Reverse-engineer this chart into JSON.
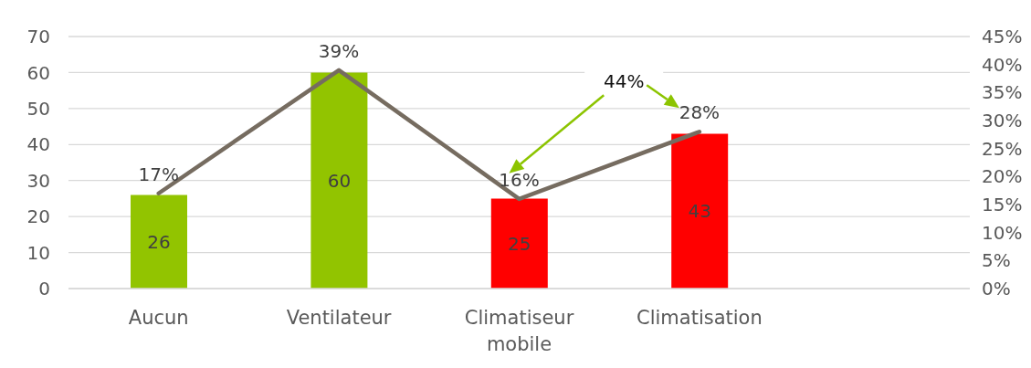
{
  "chart_data": {
    "type": "bar",
    "categories": [
      "Aucun",
      "Ventilateur",
      "Climatiseur mobile",
      "Climatisation",
      null
    ],
    "series": [
      {
        "colors": [
          "#92c400",
          "#92c400",
          "#ff0000",
          "#ff0000",
          null
        ],
        "values": [
          26,
          60,
          25,
          43,
          null
        ],
        "value_labels": [
          "26",
          "60",
          "25",
          "43",
          null
        ]
      },
      {
        "type": "line",
        "axis": "y2",
        "color": "#766c60",
        "values": [
          17,
          39,
          16,
          28,
          null
        ],
        "value_labels": [
          "17%",
          "39%",
          "16%",
          "28%",
          null
        ],
        "marker": "none",
        "line_style": "solid"
      }
    ],
    "ylim": [
      0,
      70
    ],
    "yticks": [
      0,
      10,
      20,
      30,
      40,
      50,
      60,
      70
    ],
    "y2lim": [
      0,
      45
    ],
    "y2ticks": [
      {
        "value": 0,
        "label": "0%"
      },
      {
        "value": 5,
        "label": "5%"
      },
      {
        "value": 10,
        "label": "10%"
      },
      {
        "value": 15,
        "label": "15%"
      },
      {
        "value": 20,
        "label": "20%"
      },
      {
        "value": 25,
        "label": "25%"
      },
      {
        "value": 30,
        "label": "30%"
      },
      {
        "value": 35,
        "label": "35%"
      },
      {
        "value": 40,
        "label": "40%"
      },
      {
        "value": 45,
        "label": "45%"
      }
    ],
    "grid": "y",
    "legend": false,
    "annotations": [
      "44%"
    ]
  }
}
